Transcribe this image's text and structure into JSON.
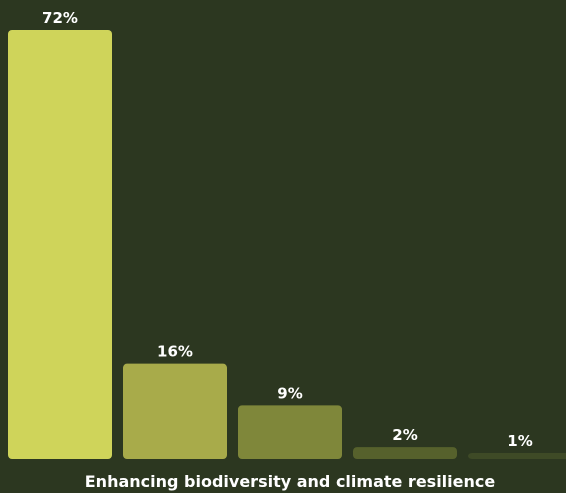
{
  "chart_data": {
    "type": "bar",
    "categories": [
      "",
      "",
      "",
      "",
      ""
    ],
    "values": [
      72,
      16,
      9,
      2,
      1
    ],
    "value_labels": [
      "72%",
      "16%",
      "9%",
      "2%",
      "1%"
    ],
    "title": "",
    "xlabel": "Enhancing biodiversity and climate resilience",
    "ylabel": "",
    "ylim": [
      0,
      72
    ],
    "grid": false,
    "legend": "none",
    "bar_colors": [
      "#cfd45a",
      "#a8ab4a",
      "#7f873a",
      "#56612c",
      "#3e4a26"
    ],
    "background": "#2c3720",
    "label_color": "#ffffff"
  }
}
